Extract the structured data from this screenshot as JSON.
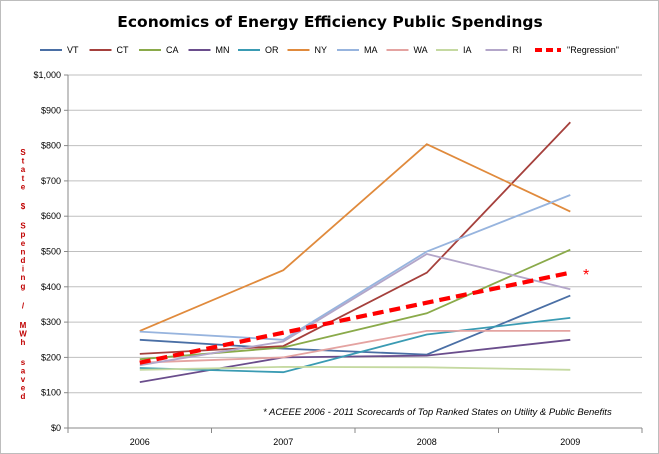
{
  "chart_data": {
    "type": "line",
    "title": "Economics of Energy Efficiency Public Spendings",
    "xlabel": "",
    "ylabel": "State $ Spending / MWh saved",
    "categories": [
      "2006",
      "2007",
      "2008",
      "2009"
    ],
    "ylim": [
      0,
      1000
    ],
    "yticks": [
      0,
      100,
      200,
      300,
      400,
      500,
      600,
      700,
      800,
      900,
      1000
    ],
    "ytick_labels": [
      "$0",
      "$100",
      "$200",
      "$300",
      "$400",
      "$500",
      "$600",
      "$700",
      "$800",
      "$900",
      "$1,000"
    ],
    "grid": "horizontal",
    "legend_position": "top",
    "series": [
      {
        "name": "VT",
        "color": "#4a6fa5",
        "values": [
          250,
          225,
          208,
          375
        ]
      },
      {
        "name": "CT",
        "color": "#a5403c",
        "values": [
          210,
          232,
          440,
          866
        ]
      },
      {
        "name": "CA",
        "color": "#8aaa4a",
        "values": [
          195,
          228,
          325,
          505
        ]
      },
      {
        "name": "MN",
        "color": "#6a4d8c",
        "values": [
          130,
          200,
          205,
          250
        ]
      },
      {
        "name": "OR",
        "color": "#3a9bb3",
        "values": [
          170,
          158,
          265,
          312
        ]
      },
      {
        "name": "NY",
        "color": "#e08a3c",
        "values": [
          275,
          447,
          804,
          613
        ]
      },
      {
        "name": "MA",
        "color": "#97b4de",
        "values": [
          273,
          250,
          500,
          660
        ]
      },
      {
        "name": "WA",
        "color": "#e4a3a1",
        "values": [
          185,
          200,
          275,
          275
        ]
      },
      {
        "name": "IA",
        "color": "#c5d9a1",
        "values": [
          165,
          173,
          172,
          165
        ]
      },
      {
        "name": "RI",
        "color": "#b3a6c9",
        "values": [
          178,
          245,
          493,
          393
        ]
      },
      {
        "name": "\"Regression\"",
        "color": "#ff0000",
        "dashed": true,
        "values": [
          185,
          270,
          355,
          440
        ]
      }
    ],
    "annotations": [
      "*",
      "* ACEEE 2006 - 2011 Scorecards of Top Ranked States on Utility & Public Benefits"
    ]
  }
}
